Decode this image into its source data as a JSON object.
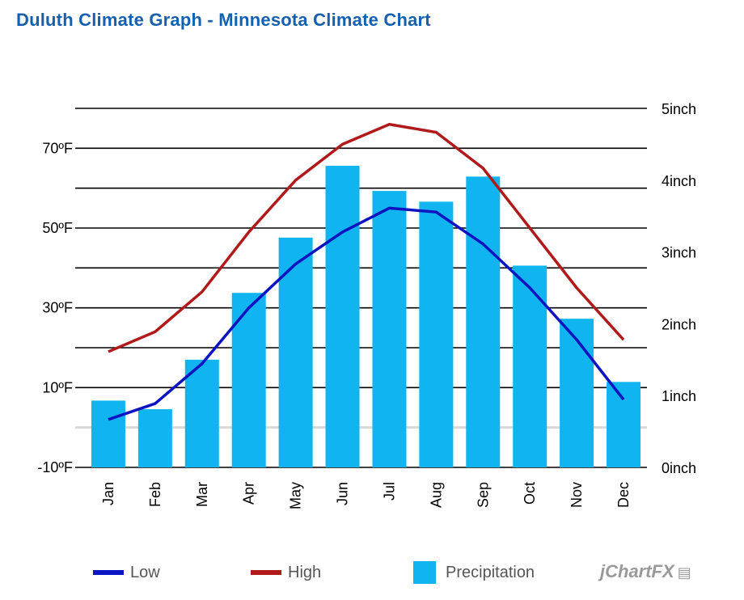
{
  "title": "Duluth Climate Graph - Minnesota Climate Chart",
  "chart_data": {
    "type": "bar+line",
    "categories": [
      "Jan",
      "Feb",
      "Mar",
      "Apr",
      "May",
      "Jun",
      "Jul",
      "Aug",
      "Sep",
      "Oct",
      "Nov",
      "Dec"
    ],
    "series": [
      {
        "name": "Low",
        "type": "line",
        "axis": "left",
        "unit": "°F",
        "color": "#0b14c0",
        "values": [
          2,
          6,
          16,
          30,
          41,
          49,
          55,
          54,
          46,
          35,
          22,
          7
        ]
      },
      {
        "name": "High",
        "type": "line",
        "axis": "left",
        "unit": "°F",
        "color": "#b01a1a",
        "values": [
          19,
          24,
          34,
          49,
          62,
          71,
          76,
          74,
          65,
          50,
          35,
          22
        ]
      },
      {
        "name": "Precipitation",
        "type": "bar",
        "axis": "right",
        "unit": "inch",
        "color": "#10b4f0",
        "values": [
          0.93,
          0.81,
          1.5,
          2.43,
          3.2,
          4.2,
          3.85,
          3.7,
          4.05,
          2.81,
          2.07,
          1.19
        ]
      }
    ],
    "y_left": {
      "ticks": [
        "70ºF",
        "50ºF",
        "30ºF",
        "10ºF",
        "-10ºF"
      ],
      "tick_values": [
        70,
        50,
        30,
        10,
        -10
      ],
      "range": [
        -10,
        80
      ]
    },
    "y_right": {
      "ticks": [
        "5inch",
        "4inch",
        "3inch",
        "2inch",
        "1inch",
        "0inch"
      ],
      "tick_values": [
        5,
        4,
        3,
        2,
        1,
        0
      ],
      "range": [
        0,
        5
      ]
    },
    "grid": true,
    "legend_position": "bottom"
  },
  "legend": [
    {
      "label": "Low",
      "color": "#0b14c0",
      "kind": "line"
    },
    {
      "label": "High",
      "color": "#b01a1a",
      "kind": "line"
    },
    {
      "label": "Precipitation",
      "color": "#10b4f0",
      "kind": "box"
    }
  ],
  "branding": {
    "text": "jChartFX",
    "icon": "bar-chart-icon"
  }
}
